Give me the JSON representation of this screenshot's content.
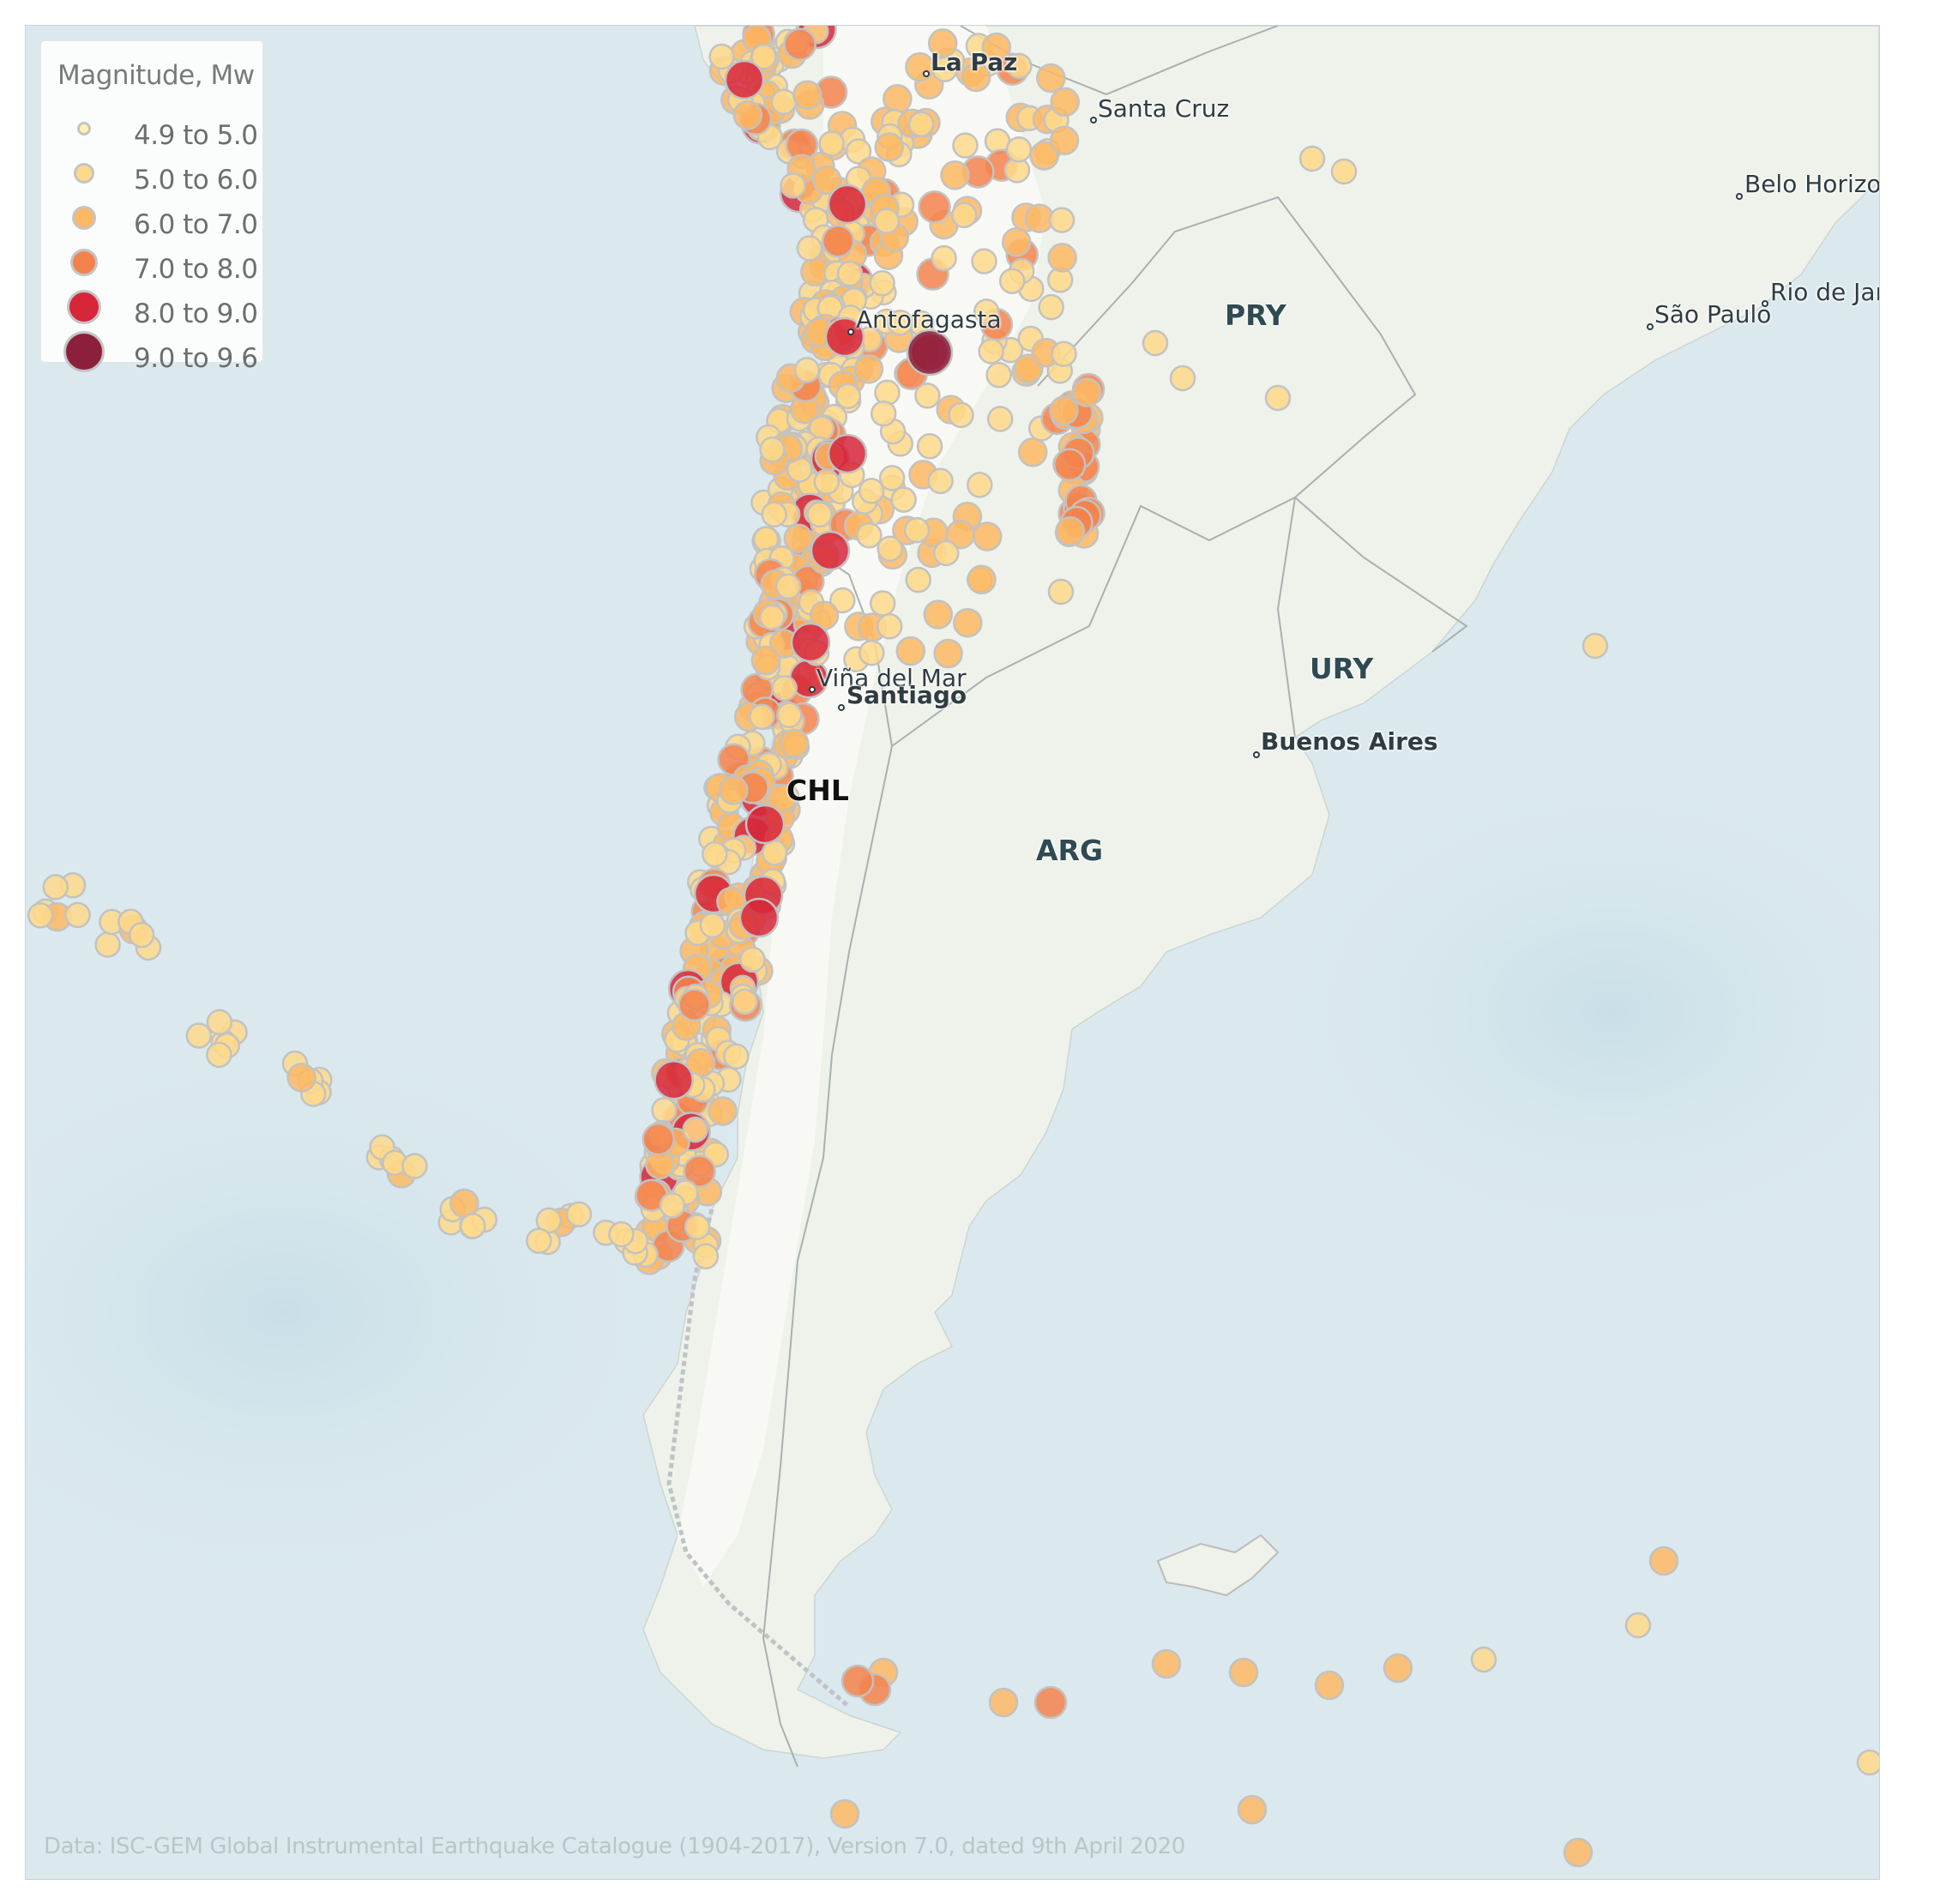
{
  "legend": {
    "title": "Magnitude, Mw",
    "entries": [
      {
        "label": "4.9 to 5.0",
        "color": "#fff3b0",
        "size": 16
      },
      {
        "label": "5.0 to 6.0",
        "color": "#fed98a",
        "size": 24
      },
      {
        "label": "6.0 to 7.0",
        "color": "#fdb863",
        "size": 28
      },
      {
        "label": "7.0 to 8.0",
        "color": "#f4824c",
        "size": 32
      },
      {
        "label": "8.0 to 9.0",
        "color": "#d7263a",
        "size": 40
      },
      {
        "label": "9.0 to 9.6",
        "color": "#8b1f3c",
        "size": 48
      }
    ]
  },
  "credit": "Data:  ISC-GEM Global Instrumental Earthquake Catalogue (1904-2017), Version 7.0, dated 9th April 2020",
  "places": {
    "la_paz": "La Paz",
    "santa_cruz": "Santa Cruz",
    "belo_horizonte": "Belo Horizonte",
    "rio": "Rio de Janeiro",
    "sao_paulo": "São Paulo",
    "antofagasta": "Antofagasta",
    "vina": "Viña del Mar",
    "santiago": "Santiago",
    "buenos_aires": "Buenos Aires"
  },
  "countries": {
    "pry": "PRY",
    "ury": "URY",
    "chl": "CHL",
    "arg": "ARG"
  },
  "colors": {
    "ocean": "#dbe9ee",
    "land": "#eef2ea",
    "andes": "#f7f8f4",
    "border": "#a9b0b0"
  }
}
